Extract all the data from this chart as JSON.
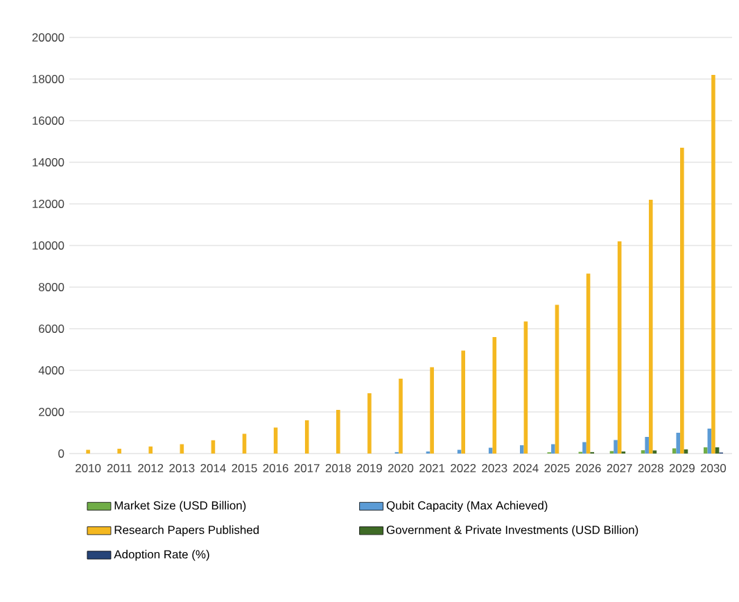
{
  "chart_data": {
    "type": "bar",
    "categories": [
      "2010",
      "2011",
      "2012",
      "2013",
      "2014",
      "2015",
      "2016",
      "2017",
      "2018",
      "2019",
      "2020",
      "2021",
      "2022",
      "2023",
      "2024",
      "2025",
      "2026",
      "2027",
      "2028",
      "2029",
      "2030"
    ],
    "series": [
      {
        "name": "Market Size (USD Billion)",
        "color": "#70ad47",
        "values": [
          0,
          0,
          0,
          0,
          0,
          0,
          0,
          0,
          0,
          0,
          0,
          0,
          0,
          0,
          0,
          60,
          80,
          120,
          160,
          250,
          300
        ]
      },
      {
        "name": "Qubit Capacity (Max Achieved)",
        "color": "#5b9bd5",
        "values": [
          0,
          0,
          0,
          0,
          0,
          0,
          0,
          0,
          0,
          0,
          70,
          100,
          180,
          280,
          400,
          450,
          550,
          650,
          800,
          1000,
          1200
        ]
      },
      {
        "name": "Research Papers Published",
        "color": "#f4b820",
        "values": [
          180,
          230,
          340,
          450,
          640,
          950,
          1250,
          1600,
          2100,
          2900,
          3600,
          4150,
          4950,
          5600,
          6350,
          7150,
          8650,
          10200,
          12200,
          14700,
          18200
        ]
      },
      {
        "name": "Government & Private Investments (USD Billion)",
        "color": "#3f6b26",
        "values": [
          0,
          0,
          0,
          0,
          0,
          0,
          0,
          0,
          0,
          0,
          0,
          0,
          0,
          0,
          0,
          0,
          70,
          100,
          150,
          200,
          300
        ]
      },
      {
        "name": "Adoption Rate (%)",
        "color": "#264478",
        "values": [
          0,
          0,
          0,
          0,
          0,
          0,
          0,
          0,
          0,
          0,
          0,
          0,
          0,
          0,
          0,
          0,
          0,
          0,
          0,
          0,
          50
        ]
      }
    ],
    "ylim": [
      0,
      20000
    ],
    "yticks": [
      0,
      2000,
      4000,
      6000,
      8000,
      10000,
      12000,
      14000,
      16000,
      18000,
      20000
    ],
    "grid": "y",
    "legend": "bottom"
  }
}
